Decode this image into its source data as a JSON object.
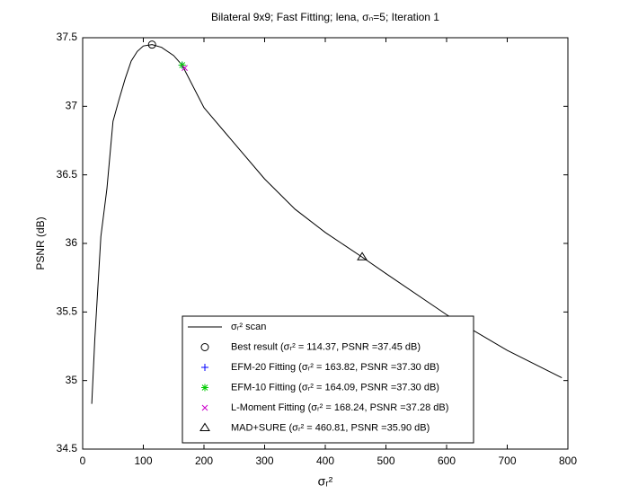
{
  "chart_data": {
    "type": "line",
    "title": "Bilateral 9x9; Fast Fitting; lena, σₙ=5; Iteration 1",
    "x_label": "σᵣ²",
    "y_label": "PSNR (dB)",
    "xlim": [
      0,
      800
    ],
    "xticks": [
      0,
      100,
      200,
      300,
      400,
      500,
      600,
      700,
      800
    ],
    "ylim": [
      34.5,
      37.5
    ],
    "yticks": [
      34.5,
      35,
      35.5,
      36,
      36.5,
      37,
      37.5
    ],
    "legend": "lower-center",
    "series": [
      {
        "name": "σᵣ² scan",
        "color": "#000000",
        "marker": "none",
        "x": [
          15,
          20,
          30,
          40,
          50,
          60,
          70,
          80,
          90,
          100,
          114.37,
          130,
          150,
          164,
          200,
          250,
          300,
          350,
          400,
          460.81,
          500,
          600,
          700,
          790
        ],
        "values": [
          34.83,
          35.3,
          36.05,
          36.4,
          36.89,
          37.05,
          37.2,
          37.33,
          37.4,
          37.44,
          37.45,
          37.43,
          37.37,
          37.3,
          36.99,
          36.73,
          36.47,
          36.25,
          36.08,
          35.9,
          35.78,
          35.48,
          35.22,
          35.02
        ]
      },
      {
        "name": "Best result (σᵣ² = 114.37, PSNR =37.45 dB)",
        "color": "#000000",
        "marker": "circle",
        "x": [
          114.37
        ],
        "values": [
          37.45
        ]
      },
      {
        "name": "EFM-20 Fitting (σᵣ² = 163.82, PSNR =37.30 dB)",
        "color": "#0000ff",
        "marker": "plus",
        "x": [
          163.82
        ],
        "values": [
          37.3
        ]
      },
      {
        "name": "EFM-10 Fitting (σᵣ² = 164.09, PSNR =37.30 dB)",
        "color": "#00cc00",
        "marker": "asterisk",
        "x": [
          164.09
        ],
        "values": [
          37.3
        ]
      },
      {
        "name": "L-Moment Fitting (σᵣ² = 168.24, PSNR =37.28 dB)",
        "color": "#cc00cc",
        "marker": "x",
        "x": [
          168.24
        ],
        "values": [
          37.28
        ]
      },
      {
        "name": "MAD+SURE (σᵣ² = 460.81, PSNR =35.90 dB)",
        "color": "#000000",
        "marker": "triangle",
        "x": [
          460.81
        ],
        "values": [
          35.9
        ]
      }
    ]
  }
}
